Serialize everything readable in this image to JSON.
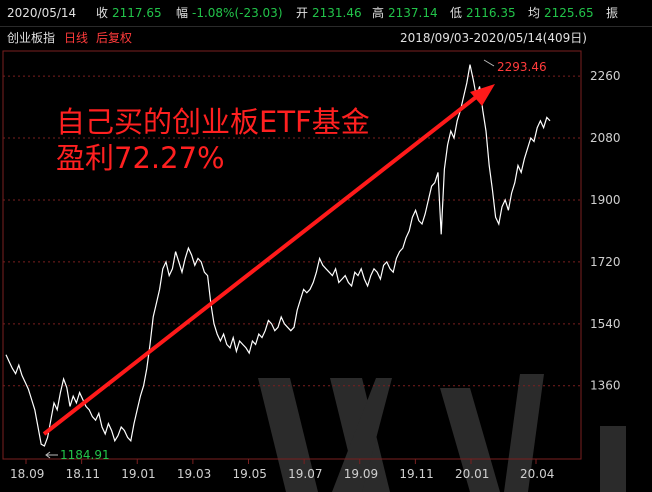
{
  "header": {
    "date": "2020/05/14",
    "close_label": "收",
    "close_value": "2117.65",
    "change_label": "幅",
    "change_value": "-1.08%(-23.03)",
    "open_label": "开",
    "open_value": "2131.46",
    "high_label": "高",
    "high_value": "2137.14",
    "low_label": "低",
    "low_value": "2116.35",
    "avg_label": "均",
    "avg_value": "2125.65",
    "amp_label": "振"
  },
  "subheader": {
    "index_name": "创业板指",
    "period": "日线",
    "adjust": "后复权",
    "range": "2018/09/03-2020/05/14(409日)"
  },
  "annotation": {
    "line1": "自己买的创业板ETF基金",
    "line2": "盈利72.27%"
  },
  "colors": {
    "background": "#000000",
    "price_line": "#ffffff",
    "grid": "#7a1f1f",
    "arrow": "#ff1a1a",
    "annotation": "#ff2020",
    "up": "#ff3b3b",
    "down": "#22c44a",
    "axis_text": "#d0d0d0"
  },
  "chart_data": {
    "type": "line",
    "y_ticks": [
      "2260",
      "2080",
      "1900",
      "1720",
      "1540",
      "1360"
    ],
    "y_tick_values": [
      2260,
      2080,
      1900,
      1720,
      1540,
      1360
    ],
    "x_ticks": [
      "18.09",
      "18.11",
      "19.01",
      "19.03",
      "19.05",
      "19.07",
      "19.09",
      "19.11",
      "20.01",
      "20.04"
    ],
    "ylim": [
      1150,
      2330
    ],
    "max_label": "2293.46",
    "min_label": "1184.91",
    "series": [
      {
        "values": [
          1450,
          1430,
          1410,
          1395,
          1420,
          1390,
          1370,
          1350,
          1320,
          1290,
          1240,
          1190,
          1184.91,
          1210,
          1260,
          1310,
          1290,
          1340,
          1380,
          1355,
          1300,
          1330,
          1310,
          1340,
          1320,
          1300,
          1290,
          1270,
          1260,
          1280,
          1240,
          1220,
          1250,
          1230,
          1200,
          1215,
          1240,
          1230,
          1210,
          1200,
          1250,
          1290,
          1330,
          1360,
          1410,
          1480,
          1560,
          1600,
          1640,
          1700,
          1720,
          1680,
          1700,
          1750,
          1720,
          1690,
          1730,
          1760,
          1740,
          1710,
          1730,
          1720,
          1690,
          1680,
          1600,
          1540,
          1510,
          1490,
          1510,
          1480,
          1470,
          1500,
          1460,
          1490,
          1480,
          1470,
          1455,
          1490,
          1480,
          1510,
          1500,
          1520,
          1550,
          1540,
          1520,
          1530,
          1560,
          1540,
          1530,
          1520,
          1530,
          1580,
          1610,
          1640,
          1630,
          1640,
          1660,
          1690,
          1730,
          1710,
          1700,
          1690,
          1680,
          1700,
          1660,
          1670,
          1680,
          1660,
          1650,
          1690,
          1680,
          1700,
          1670,
          1650,
          1680,
          1700,
          1690,
          1670,
          1710,
          1720,
          1700,
          1690,
          1730,
          1750,
          1760,
          1790,
          1810,
          1850,
          1870,
          1840,
          1830,
          1860,
          1900,
          1940,
          1950,
          1980,
          1800,
          1990,
          2060,
          2100,
          2080,
          2130,
          2160,
          2200,
          2240,
          2293.46,
          2250,
          2200,
          2230,
          2160,
          2100,
          2000,
          1930,
          1850,
          1830,
          1880,
          1900,
          1870,
          1920,
          1950,
          2000,
          1980,
          2020,
          2050,
          2080,
          2070,
          2110,
          2130,
          2110,
          2140,
          2130
        ]
      }
    ]
  }
}
